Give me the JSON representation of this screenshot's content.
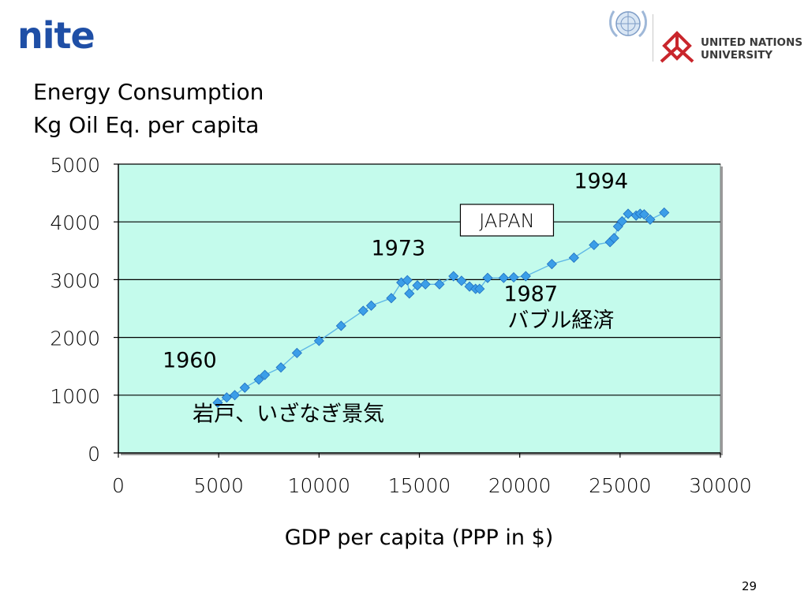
{
  "header": {
    "logo_text": "nite",
    "un_university_line1": "UNITED NATIONS",
    "un_university_line2": "UNIVERSITY"
  },
  "colors": {
    "brand": "#1f4fa6",
    "plot_background": "#c4fbec",
    "series_line": "#5fb8e6",
    "marker": "#3b9ee8",
    "unu_red": "#c9262c"
  },
  "page_number": "29",
  "chart_data": {
    "type": "scatter",
    "ylabel_line1": "Energy Consumption",
    "ylabel_line2": "Kg Oil Eq. per capita",
    "xlabel": "GDP per capita (PPP in $)",
    "xlim": [
      0,
      30000
    ],
    "ylim": [
      0,
      5000
    ],
    "x_ticks": [
      "0",
      "5000",
      "10000",
      "15000",
      "20000",
      "25000",
      "30000"
    ],
    "y_ticks": [
      "0",
      "1000",
      "2000",
      "3000",
      "4000",
      "5000"
    ],
    "grid": "horizontal",
    "series": [
      {
        "x": [
          4950,
          5400,
          5800,
          6300,
          7000,
          7300,
          8100,
          8900,
          10000,
          11100,
          12200,
          12600,
          13600,
          14100,
          14400,
          14500,
          14900,
          15300,
          16000,
          16700,
          17100,
          17500,
          17800,
          18000,
          18400,
          19200,
          19700,
          20300,
          21600,
          22700,
          23700,
          24500,
          24700,
          24900,
          25100,
          25400,
          25800,
          26000,
          26200,
          26500,
          27200
        ],
        "y": [
          870,
          960,
          1000,
          1130,
          1270,
          1350,
          1480,
          1730,
          1940,
          2200,
          2460,
          2550,
          2680,
          2950,
          2990,
          2760,
          2900,
          2920,
          2920,
          3060,
          2980,
          2880,
          2840,
          2840,
          3030,
          3030,
          3040,
          3060,
          3270,
          3380,
          3600,
          3650,
          3720,
          3920,
          4010,
          4140,
          4110,
          4140,
          4130,
          4040,
          4160
        ]
      }
    ],
    "annotations": [
      {
        "text": "1960",
        "x": 2200,
        "y": 1480
      },
      {
        "text": "岩戸、いざなぎ景気",
        "x": 3700,
        "y": 550
      },
      {
        "text": "1973",
        "x": 12600,
        "y": 3420
      },
      {
        "text": "JAPAN",
        "x": 17200,
        "y": 3880,
        "boxed": true
      },
      {
        "text": "1987",
        "x": 19200,
        "y": 2630
      },
      {
        "text": "バブル経済",
        "x": 19400,
        "y": 2170
      },
      {
        "text": "1994",
        "x": 22700,
        "y": 4580
      }
    ]
  }
}
